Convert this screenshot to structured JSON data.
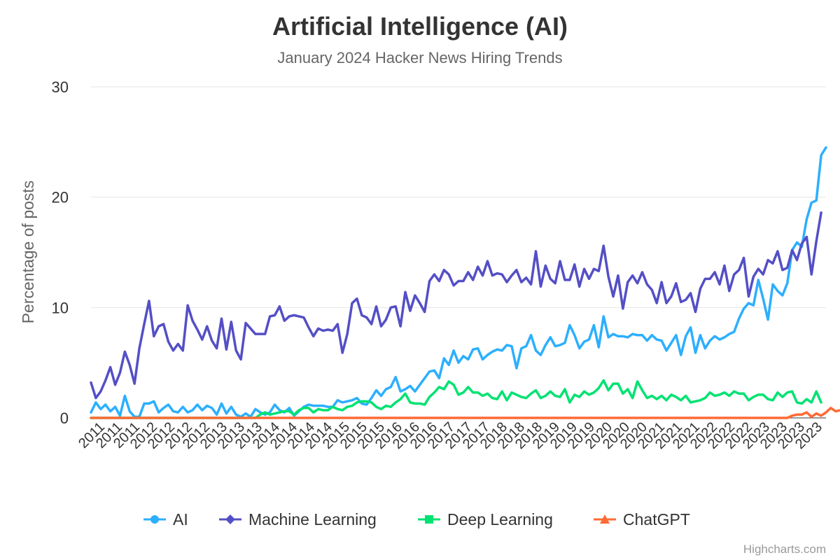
{
  "chart_data": {
    "type": "line",
    "title": "Artificial Intelligence (AI)",
    "subtitle": "January 2024 Hacker News Hiring Trends",
    "ylabel": "Percentage of posts",
    "xlabel": "",
    "ylim": [
      0,
      30
    ],
    "yticks": [
      "0",
      "10",
      "20",
      "30"
    ],
    "grid": true,
    "legend_position": "bottom-center",
    "credit": "Highcharts.com",
    "x_tick_labels": [
      "2011",
      "2011",
      "2011",
      "2012",
      "2012",
      "2012",
      "2012",
      "2013",
      "2013",
      "2013",
      "2014",
      "2014",
      "2014",
      "2014",
      "2015",
      "2015",
      "2015",
      "2016",
      "2016",
      "2016",
      "2017",
      "2017",
      "2017",
      "2018",
      "2018",
      "2018",
      "2019",
      "2019",
      "2019",
      "2020",
      "2020",
      "2020",
      "2021",
      "2021",
      "2021",
      "2022",
      "2022",
      "2022",
      "2023",
      "2023",
      "2023",
      "2023"
    ],
    "series": [
      {
        "name": "AI",
        "color": "#2caffe",
        "marker": "circle",
        "values": [
          0.5,
          1.4,
          0.8,
          1.2,
          0.6,
          1.0,
          0.2,
          2.0,
          0.6,
          0.1,
          0.1,
          1.3,
          1.3,
          1.5,
          0.5,
          0.9,
          1.2,
          0.6,
          0.5,
          1.0,
          0.5,
          0.7,
          1.2,
          0.7,
          1.1,
          0.9,
          0.3,
          1.3,
          0.4,
          1.0,
          0.3,
          0.1,
          0.4,
          0.1,
          0.8,
          0.5,
          0.3,
          0.5,
          1.2,
          0.7,
          0.5,
          0.9,
          0.2,
          0.6,
          1.0,
          1.2,
          1.1,
          1.1,
          1.1,
          1.0,
          1.0,
          1.6,
          1.4,
          1.5,
          1.6,
          1.8,
          1.3,
          1.2,
          1.8,
          2.5,
          2.0,
          2.6,
          2.8,
          3.7,
          2.4,
          2.6,
          2.9,
          2.4,
          3.0,
          3.6,
          4.2,
          4.3,
          3.6,
          5.4,
          4.8,
          6.1,
          5.0,
          5.6,
          5.3,
          6.2,
          6.3,
          5.3,
          5.7,
          6.0,
          6.2,
          6.1,
          6.6,
          6.5,
          4.5,
          6.3,
          6.5,
          7.5,
          6.1,
          5.7,
          6.6,
          7.3,
          6.5,
          6.6,
          6.8,
          8.4,
          7.5,
          6.3,
          6.9,
          7.1,
          8.4,
          6.4,
          9.2,
          7.3,
          7.6,
          7.4,
          7.4,
          7.3,
          7.6,
          7.5,
          7.5,
          7.0,
          7.5,
          7.1,
          7.0,
          6.1,
          6.8,
          7.5,
          5.7,
          7.4,
          8.2,
          5.9,
          7.5,
          6.3,
          7.0,
          7.4,
          7.1,
          7.3,
          7.6,
          7.8,
          9.0,
          9.9,
          10.4,
          10.2,
          12.5,
          10.8,
          8.9,
          12.1,
          11.5,
          11.1,
          12.2,
          15.2,
          15.9,
          15.5,
          18.0,
          19.5,
          19.7,
          23.8,
          24.5
        ]
      },
      {
        "name": "Machine Learning",
        "color": "#544fc5",
        "marker": "diamond",
        "values": [
          3.2,
          1.8,
          2.4,
          3.4,
          4.6,
          3.0,
          4.1,
          6.0,
          4.8,
          3.1,
          6.3,
          8.5,
          10.6,
          7.4,
          8.3,
          8.5,
          6.9,
          6.1,
          6.7,
          6.1,
          10.2,
          8.8,
          8.0,
          7.1,
          8.3,
          7.0,
          6.3,
          9.0,
          6.2,
          8.7,
          6.1,
          5.3,
          8.6,
          8.1,
          7.6,
          7.6,
          7.6,
          9.2,
          9.3,
          10.1,
          8.8,
          9.2,
          9.3,
          9.2,
          9.1,
          8.2,
          7.4,
          8.1,
          7.9,
          8.0,
          7.9,
          8.5,
          5.9,
          7.6,
          10.4,
          10.8,
          9.3,
          9.1,
          8.5,
          10.1,
          8.3,
          8.9,
          10.0,
          10.1,
          8.3,
          11.4,
          9.7,
          11.1,
          10.4,
          9.6,
          12.4,
          13.0,
          12.4,
          13.4,
          13.0,
          12.0,
          12.4,
          12.4,
          13.2,
          12.5,
          13.7,
          12.9,
          14.2,
          12.9,
          13.1,
          13.0,
          12.3,
          12.9,
          13.4,
          12.3,
          12.7,
          12.1,
          15.1,
          11.9,
          13.8,
          12.6,
          12.2,
          14.2,
          12.5,
          12.5,
          13.9,
          11.9,
          13.5,
          12.6,
          13.5,
          13.3,
          15.6,
          12.8,
          11.0,
          12.9,
          9.9,
          12.3,
          12.9,
          12.2,
          13.2,
          12.1,
          11.6,
          10.4,
          12.3,
          10.4,
          11.0,
          12.2,
          10.5,
          10.7,
          11.3,
          9.6,
          11.7,
          12.6,
          12.6,
          13.2,
          12.1,
          13.8,
          11.5,
          13.0,
          13.4,
          14.5,
          11.0,
          12.8,
          13.5,
          13.0,
          14.3,
          14.0,
          15.1,
          13.4,
          13.6,
          15.2,
          14.3,
          15.8,
          16.4,
          13.0,
          16.0,
          18.6
        ]
      },
      {
        "name": "Deep Learning",
        "color": "#00e272",
        "marker": "square",
        "values": [
          0,
          0,
          0,
          0,
          0,
          0,
          0,
          0,
          0,
          0,
          0,
          0,
          0,
          0,
          0,
          0,
          0,
          0,
          0,
          0,
          0,
          0,
          0,
          0,
          0,
          0,
          0,
          0,
          0,
          0,
          0,
          0,
          0,
          0,
          0,
          0.3,
          0.5,
          0.3,
          0.4,
          0.5,
          0.6,
          0.6,
          0.3,
          0.7,
          0.9,
          0.9,
          0.5,
          0.8,
          0.7,
          0.7,
          1.0,
          0.8,
          0.7,
          1.0,
          1.1,
          1.4,
          1.5,
          1.5,
          1.4,
          1.0,
          0.8,
          1.1,
          1.0,
          1.4,
          1.7,
          2.2,
          1.4,
          1.3,
          1.3,
          1.2,
          1.9,
          2.3,
          2.8,
          2.6,
          3.3,
          3.0,
          2.1,
          2.3,
          2.8,
          2.3,
          2.3,
          2.0,
          2.2,
          1.8,
          1.7,
          2.4,
          1.6,
          2.3,
          2.1,
          1.9,
          1.8,
          2.2,
          2.5,
          1.8,
          2.0,
          2.4,
          2.0,
          1.9,
          2.6,
          1.4,
          2.1,
          1.9,
          2.4,
          2.1,
          2.3,
          2.7,
          3.4,
          2.5,
          3.1,
          3.1,
          2.2,
          2.6,
          1.8,
          3.3,
          2.5,
          1.8,
          2.0,
          1.7,
          2.0,
          1.6,
          2.1,
          1.9,
          1.6,
          2.0,
          1.4,
          1.5,
          1.6,
          1.8,
          2.3,
          2.0,
          2.1,
          2.3,
          2.0,
          2.4,
          2.2,
          2.2,
          1.6,
          1.9,
          2.1,
          2.1,
          1.7,
          1.6,
          2.3,
          1.9,
          2.3,
          2.4,
          1.4,
          1.3,
          1.7,
          1.4,
          2.4,
          1.4
        ]
      },
      {
        "name": "ChatGPT",
        "color": "#fe6a35",
        "marker": "triangle",
        "values": [
          0,
          0,
          0,
          0,
          0,
          0,
          0,
          0,
          0,
          0,
          0,
          0,
          0,
          0,
          0,
          0,
          0,
          0,
          0,
          0,
          0,
          0,
          0,
          0,
          0,
          0,
          0,
          0,
          0,
          0,
          0,
          0,
          0,
          0,
          0,
          0,
          0,
          0,
          0,
          0,
          0,
          0,
          0,
          0,
          0,
          0,
          0,
          0,
          0,
          0,
          0,
          0,
          0,
          0,
          0,
          0,
          0,
          0,
          0,
          0,
          0,
          0,
          0,
          0,
          0,
          0,
          0,
          0,
          0,
          0,
          0,
          0,
          0,
          0,
          0,
          0,
          0,
          0,
          0,
          0,
          0,
          0,
          0,
          0,
          0,
          0,
          0,
          0,
          0,
          0,
          0,
          0,
          0,
          0,
          0,
          0,
          0,
          0,
          0,
          0,
          0,
          0,
          0,
          0,
          0,
          0,
          0,
          0,
          0,
          0,
          0,
          0,
          0,
          0,
          0,
          0,
          0,
          0,
          0,
          0,
          0,
          0,
          0,
          0,
          0,
          0,
          0,
          0,
          0,
          0,
          0,
          0,
          0,
          0,
          0,
          0,
          0,
          0,
          0,
          0,
          0,
          0,
          0,
          0,
          0,
          0.2,
          0.3,
          0.3,
          0.5,
          0.1,
          0.4,
          0.2,
          0.5,
          0.9,
          0.6,
          0.7,
          0.4
        ]
      }
    ]
  }
}
